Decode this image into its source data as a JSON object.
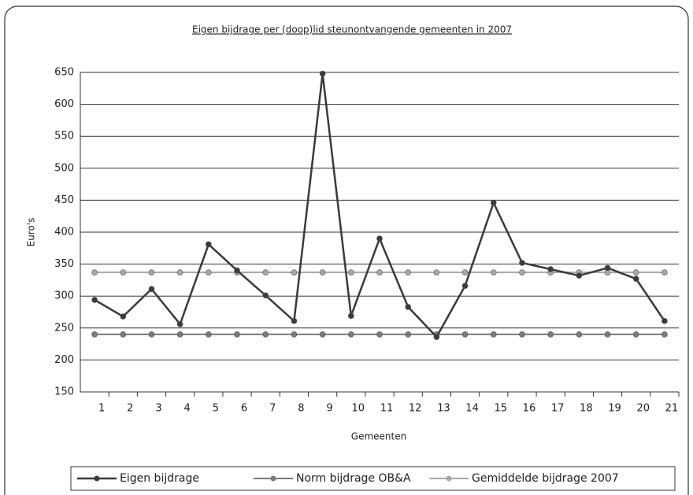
{
  "chart_data": {
    "type": "line",
    "title": "Eigen bijdrage per (doop)lid steunontvangende gemeenten in 2007",
    "x_label": "Gemeenten",
    "y_label": "Euro's",
    "categories": [
      "1",
      "2",
      "3",
      "4",
      "5",
      "6",
      "7",
      "8",
      "9",
      "10",
      "11",
      "12",
      "13",
      "14",
      "15",
      "16",
      "17",
      "18",
      "19",
      "20",
      "21"
    ],
    "series": [
      {
        "name": "Eigen bijdrage",
        "color": "#3a3a3a",
        "values": [
          294,
          268,
          311,
          256,
          381,
          340,
          301,
          261,
          648,
          269,
          390,
          283,
          236,
          316,
          446,
          352,
          342,
          332,
          344,
          327,
          261
        ]
      },
      {
        "name": "Norm bijdrage OB&A",
        "color": "#7a7a7a",
        "values": [
          240,
          240,
          240,
          240,
          240,
          240,
          240,
          240,
          240,
          240,
          240,
          240,
          240,
          240,
          240,
          240,
          240,
          240,
          240,
          240,
          240
        ]
      },
      {
        "name": "Gemiddelde bijdrage 2007",
        "color": "#a8a8a8",
        "values": [
          337,
          337,
          337,
          337,
          337,
          337,
          337,
          337,
          337,
          337,
          337,
          337,
          337,
          337,
          337,
          337,
          337,
          337,
          337,
          337,
          337
        ]
      }
    ],
    "ylim": [
      150,
      650
    ],
    "yticks": [
      150,
      200,
      250,
      300,
      350,
      400,
      450,
      500,
      550,
      600,
      650
    ],
    "grid": true,
    "legend": "bottom"
  }
}
